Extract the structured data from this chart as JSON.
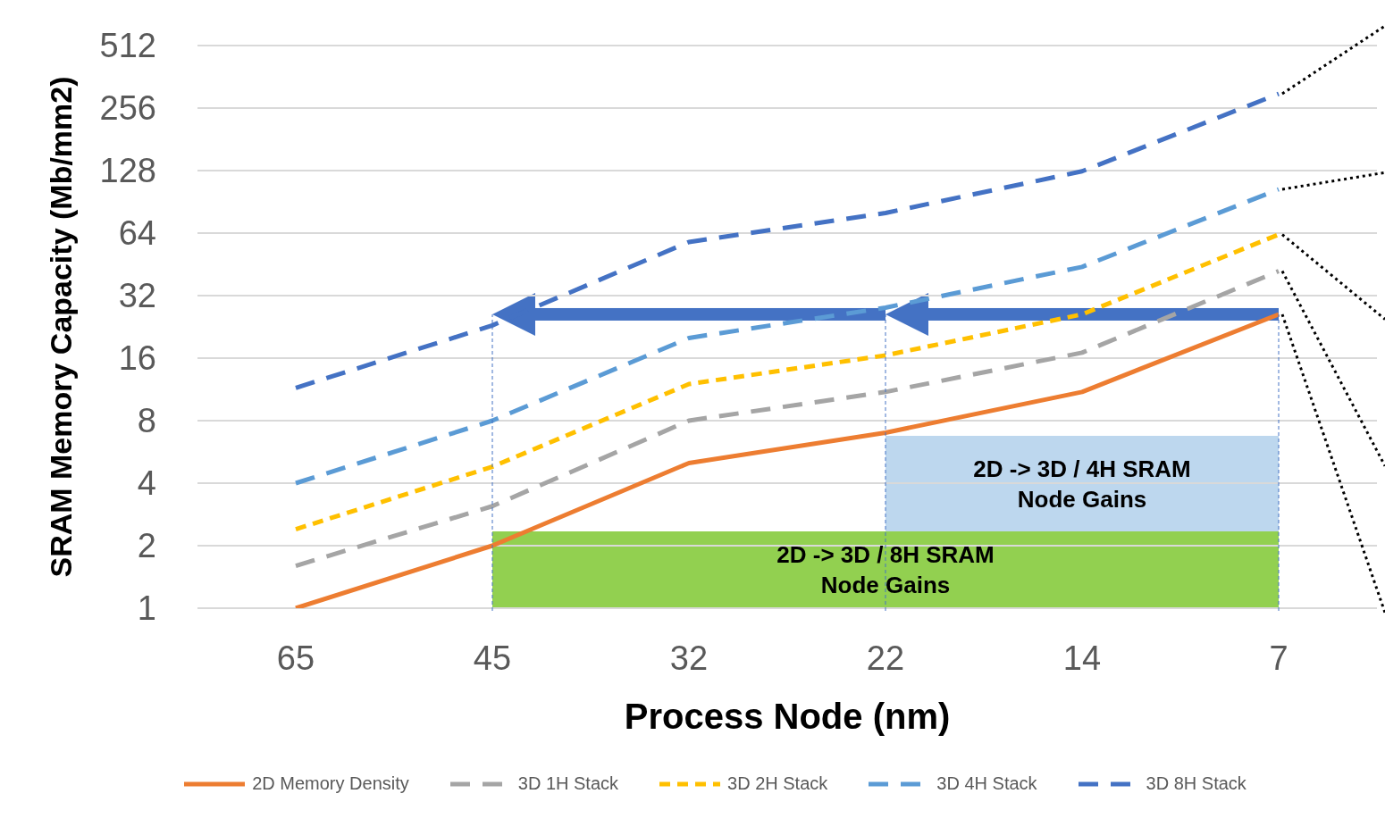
{
  "chart_data": {
    "type": "line",
    "xlabel": "Process Node (nm)",
    "ylabel": "SRAM Memory Capacity (Mb/mm2)",
    "categories": [
      "65",
      "45",
      "32",
      "22",
      "14",
      "7"
    ],
    "series": [
      {
        "name": "2D Memory Density",
        "color": "#ed7d31",
        "line_style": "solid",
        "values": [
          1,
          2,
          5,
          7,
          11,
          26
        ]
      },
      {
        "name": "3D 1H Stack",
        "color": "#a5a5a5",
        "line_style": "dashed",
        "values": [
          1.6,
          3.1,
          8,
          11,
          17,
          42
        ]
      },
      {
        "name": "3D 2H Stack",
        "color": "#ffc000",
        "line_style": "dotted",
        "values": [
          2.4,
          4.8,
          12,
          16.5,
          26,
          63
        ]
      },
      {
        "name": "3D 4H Stack",
        "color": "#5b9bd5",
        "line_style": "dashed",
        "values": [
          4,
          8,
          20,
          28,
          44,
          104
        ]
      },
      {
        "name": "3D 8H Stack",
        "color": "#4472c4",
        "line_style": "dashed",
        "values": [
          11.5,
          23,
          58,
          80,
          127,
          300
        ]
      }
    ],
    "log": "y",
    "ylim": [
      1,
      512
    ],
    "yticks": [
      1,
      2,
      4,
      8,
      16,
      32,
      64,
      128,
      256,
      512
    ],
    "grid": "y",
    "legend": "bottom",
    "marker": "none",
    "bands": [
      {
        "axis": "x",
        "from": "45",
        "to": "7",
        "label": "2D -> 3D / 8H SRAM Node Gains",
        "color": "#92d050"
      },
      {
        "axis": "x",
        "from": "22",
        "to": "7",
        "label": "2D -> 3D / 4H SRAM Node Gains",
        "color": "#bdd7ee"
      }
    ]
  }
}
